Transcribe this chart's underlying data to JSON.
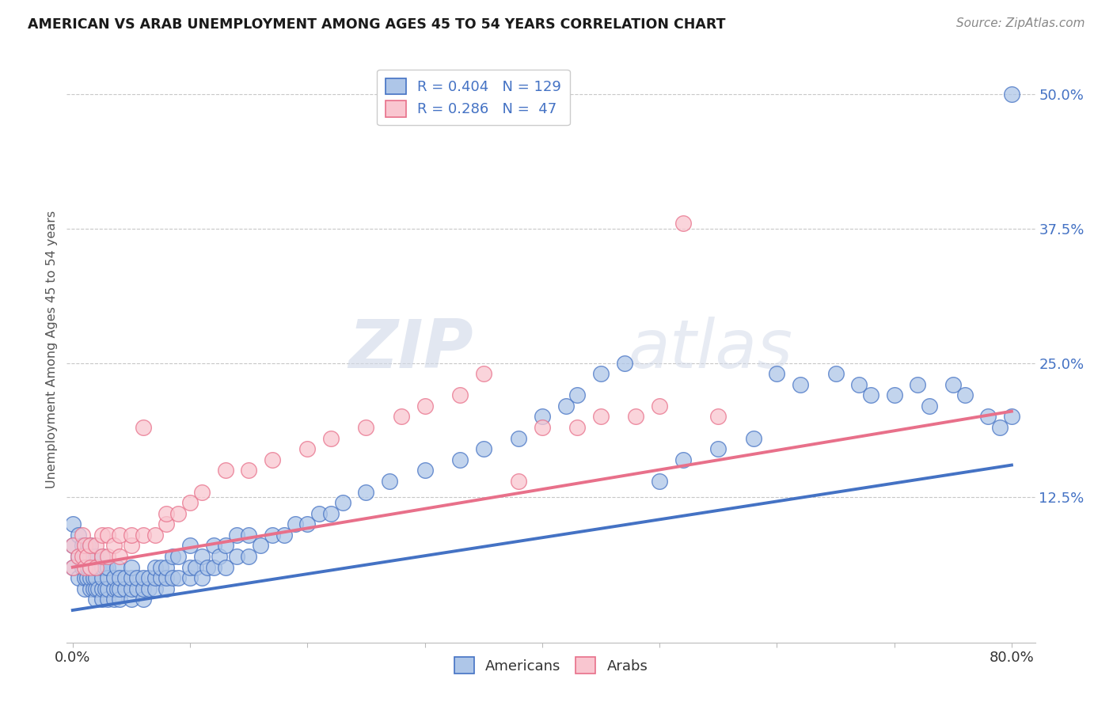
{
  "title": "AMERICAN VS ARAB UNEMPLOYMENT AMONG AGES 45 TO 54 YEARS CORRELATION CHART",
  "source": "Source: ZipAtlas.com",
  "ylabel": "Unemployment Among Ages 45 to 54 years",
  "xlim": [
    -0.005,
    0.82
  ],
  "ylim": [
    -0.01,
    0.535
  ],
  "xtick_positions": [
    0.0,
    0.1,
    0.2,
    0.3,
    0.4,
    0.5,
    0.6,
    0.7,
    0.8
  ],
  "xticklabels": [
    "0.0%",
    "",
    "",
    "",
    "",
    "",
    "",
    "",
    "80.0%"
  ],
  "ytick_positions": [
    0.125,
    0.25,
    0.375,
    0.5
  ],
  "ytick_labels": [
    "12.5%",
    "25.0%",
    "37.5%",
    "50.0%"
  ],
  "americans_R": 0.404,
  "americans_N": 129,
  "arabs_R": 0.286,
  "arabs_N": 47,
  "american_color": "#aec6e8",
  "american_edge_color": "#4472c4",
  "arab_color": "#f9c6d0",
  "arab_edge_color": "#e8708a",
  "american_line_color": "#4472c4",
  "arab_line_color": "#e8708a",
  "background_color": "#ffffff",
  "grid_color": "#c8c8c8",
  "watermark_color": "#d8e4f0",
  "legend_text_color": "#4472c4",
  "legend_label_color": "#4472c4",
  "title_color": "#1a1a1a",
  "source_color": "#888888",
  "ylabel_color": "#555555",
  "americans_x": [
    0.0,
    0.0,
    0.0,
    0.005,
    0.005,
    0.005,
    0.008,
    0.008,
    0.01,
    0.01,
    0.01,
    0.01,
    0.01,
    0.012,
    0.012,
    0.013,
    0.013,
    0.015,
    0.015,
    0.015,
    0.015,
    0.015,
    0.018,
    0.018,
    0.018,
    0.02,
    0.02,
    0.02,
    0.02,
    0.02,
    0.022,
    0.022,
    0.025,
    0.025,
    0.025,
    0.025,
    0.025,
    0.028,
    0.028,
    0.03,
    0.03,
    0.03,
    0.03,
    0.035,
    0.035,
    0.035,
    0.038,
    0.038,
    0.04,
    0.04,
    0.04,
    0.045,
    0.045,
    0.05,
    0.05,
    0.05,
    0.05,
    0.055,
    0.055,
    0.06,
    0.06,
    0.06,
    0.065,
    0.065,
    0.07,
    0.07,
    0.07,
    0.075,
    0.075,
    0.08,
    0.08,
    0.08,
    0.085,
    0.085,
    0.09,
    0.09,
    0.1,
    0.1,
    0.1,
    0.105,
    0.11,
    0.11,
    0.115,
    0.12,
    0.12,
    0.125,
    0.13,
    0.13,
    0.14,
    0.14,
    0.15,
    0.15,
    0.16,
    0.17,
    0.18,
    0.19,
    0.2,
    0.21,
    0.22,
    0.23,
    0.25,
    0.27,
    0.3,
    0.33,
    0.35,
    0.38,
    0.4,
    0.42,
    0.43,
    0.45,
    0.47,
    0.5,
    0.52,
    0.55,
    0.58,
    0.6,
    0.62,
    0.65,
    0.67,
    0.68,
    0.7,
    0.72,
    0.73,
    0.75,
    0.76,
    0.78,
    0.79,
    0.8,
    0.8
  ],
  "americans_y": [
    0.06,
    0.08,
    0.1,
    0.05,
    0.07,
    0.09,
    0.06,
    0.08,
    0.04,
    0.05,
    0.06,
    0.07,
    0.08,
    0.05,
    0.07,
    0.06,
    0.08,
    0.04,
    0.05,
    0.06,
    0.07,
    0.08,
    0.04,
    0.05,
    0.07,
    0.03,
    0.04,
    0.05,
    0.06,
    0.07,
    0.04,
    0.06,
    0.03,
    0.04,
    0.05,
    0.06,
    0.07,
    0.04,
    0.06,
    0.03,
    0.04,
    0.05,
    0.06,
    0.03,
    0.04,
    0.05,
    0.04,
    0.06,
    0.03,
    0.04,
    0.05,
    0.04,
    0.05,
    0.03,
    0.04,
    0.05,
    0.06,
    0.04,
    0.05,
    0.03,
    0.04,
    0.05,
    0.04,
    0.05,
    0.04,
    0.05,
    0.06,
    0.05,
    0.06,
    0.04,
    0.05,
    0.06,
    0.05,
    0.07,
    0.05,
    0.07,
    0.05,
    0.06,
    0.08,
    0.06,
    0.05,
    0.07,
    0.06,
    0.06,
    0.08,
    0.07,
    0.06,
    0.08,
    0.07,
    0.09,
    0.07,
    0.09,
    0.08,
    0.09,
    0.09,
    0.1,
    0.1,
    0.11,
    0.11,
    0.12,
    0.13,
    0.14,
    0.15,
    0.16,
    0.17,
    0.18,
    0.2,
    0.21,
    0.22,
    0.24,
    0.25,
    0.14,
    0.16,
    0.17,
    0.18,
    0.24,
    0.23,
    0.24,
    0.23,
    0.22,
    0.22,
    0.23,
    0.21,
    0.23,
    0.22,
    0.2,
    0.19,
    0.2,
    0.5
  ],
  "arabs_x": [
    0.0,
    0.0,
    0.005,
    0.008,
    0.008,
    0.01,
    0.01,
    0.012,
    0.015,
    0.015,
    0.02,
    0.02,
    0.025,
    0.025,
    0.03,
    0.03,
    0.035,
    0.04,
    0.04,
    0.05,
    0.05,
    0.06,
    0.06,
    0.07,
    0.08,
    0.08,
    0.09,
    0.1,
    0.11,
    0.13,
    0.15,
    0.17,
    0.2,
    0.22,
    0.25,
    0.28,
    0.3,
    0.33,
    0.35,
    0.38,
    0.4,
    0.43,
    0.45,
    0.48,
    0.5,
    0.52,
    0.55
  ],
  "arabs_y": [
    0.06,
    0.08,
    0.07,
    0.07,
    0.09,
    0.06,
    0.08,
    0.07,
    0.06,
    0.08,
    0.06,
    0.08,
    0.07,
    0.09,
    0.07,
    0.09,
    0.08,
    0.07,
    0.09,
    0.08,
    0.09,
    0.09,
    0.19,
    0.09,
    0.1,
    0.11,
    0.11,
    0.12,
    0.13,
    0.15,
    0.15,
    0.16,
    0.17,
    0.18,
    0.19,
    0.2,
    0.21,
    0.22,
    0.24,
    0.14,
    0.19,
    0.19,
    0.2,
    0.2,
    0.21,
    0.38,
    0.2
  ]
}
